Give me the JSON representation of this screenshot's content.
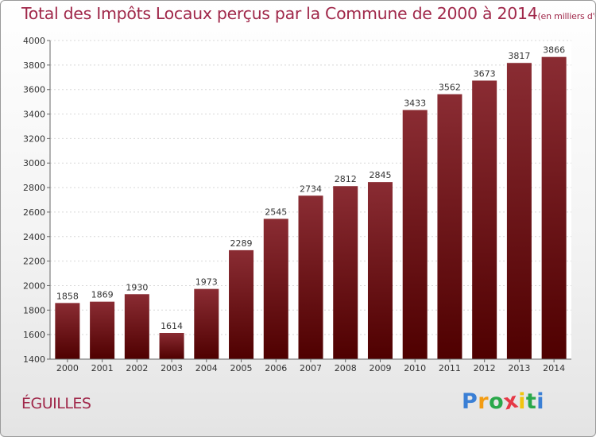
{
  "chart_data": {
    "type": "bar",
    "title": "Total des Impôts Locaux perçus par la Commune de 2000 à 2014",
    "subtitle": "(en milliers d'€)",
    "categories": [
      "2000",
      "2001",
      "2002",
      "2003",
      "2004",
      "2005",
      "2006",
      "2007",
      "2008",
      "2009",
      "2010",
      "2011",
      "2012",
      "2013",
      "2014"
    ],
    "values": [
      1858,
      1869,
      1930,
      1614,
      1973,
      2289,
      2545,
      2734,
      2812,
      2845,
      3433,
      3562,
      3673,
      3817,
      3866
    ],
    "xlabel": "",
    "ylabel": "",
    "ylim": [
      1400,
      4000
    ],
    "yticks": [
      1400,
      1600,
      1800,
      2000,
      2200,
      2400,
      2600,
      2800,
      3000,
      3200,
      3400,
      3600,
      3800,
      4000
    ],
    "grid": true,
    "bar_color": "#7a1f28",
    "bar_color_dark": "#4f0000"
  },
  "commune": "ÉGUILLES",
  "logo": {
    "letters": [
      "P",
      "r",
      "o",
      "x",
      "i",
      "t",
      "i"
    ],
    "colors": [
      "#3a7fd5",
      "#f39c12",
      "#2aa84a",
      "#e63946",
      "#f1c40f",
      "#2aa84a",
      "#3a7fd5"
    ]
  },
  "colors": {
    "title": "#a0284a"
  }
}
